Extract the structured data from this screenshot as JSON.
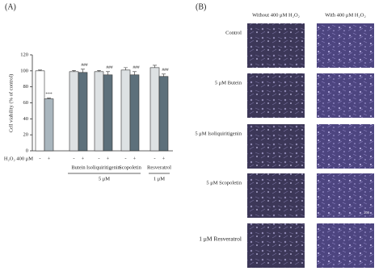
{
  "chart_data": {
    "type": "bar",
    "panel_label": "(A)",
    "y_label": "Cell viability (% of control)",
    "x_label": "H₂O₂ 400 μM",
    "categories": [
      null,
      "Butein",
      "Isoliquiritigenin",
      "Scopoletin",
      "Resveratrol"
    ],
    "series": [
      {
        "name": "-",
        "colors": [
          "#ffffff",
          "#dde1e3",
          "#dde1e3",
          "#dde1e3",
          "#dde1e3"
        ],
        "values": [
          100,
          99,
          99,
          101,
          104
        ],
        "errors": [
          1,
          1.5,
          1.5,
          3,
          3
        ]
      },
      {
        "name": "+",
        "colors": [
          "#a9b6be",
          "#5d707b",
          "#5d707b",
          "#5d707b",
          "#5d707b"
        ],
        "values": [
          65,
          98,
          95,
          95,
          93
        ],
        "errors": [
          1,
          4,
          4,
          4,
          3
        ],
        "annotations": [
          "***",
          "###",
          "###",
          "###",
          "###"
        ]
      }
    ],
    "groups": [
      {
        "label": "5 μM",
        "categories": [
          "Butein",
          "Isoliquiritigenin",
          "Scopoletin"
        ]
      },
      {
        "label": "1 μM",
        "categories": [
          "Resveratrol"
        ]
      }
    ],
    "ylim": [
      0,
      120
    ],
    "yticks": [
      0,
      20,
      40,
      60,
      80,
      100,
      120
    ]
  },
  "micrographs": {
    "panel_label": "(B)",
    "columns": [
      "Without 400 μM H₂O₂",
      "With 400 μM H₂O₂"
    ],
    "rows": [
      "Control",
      "5 μM Butein",
      "5 μM Isoliquiritigenin",
      "5 μM Scopoletin",
      "1 μM  Resveratrol"
    ],
    "scale_bar": "200"
  }
}
